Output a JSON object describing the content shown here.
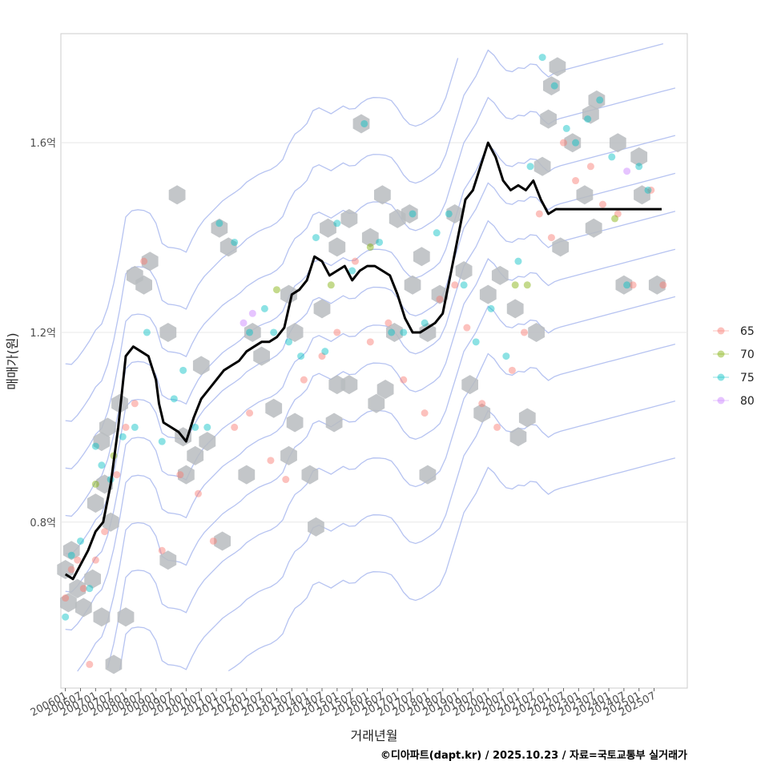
{
  "chart_data": {
    "type": "scatter",
    "xlabel": "거래년월",
    "ylabel": "매매가(원)",
    "caption": "©디아파트(dapt.kr) / 2025.10.23 / 자료=국토교통부 실거래가",
    "xlim": [
      2005.85,
      2026.6
    ],
    "ylim": [
      0.45,
      1.83
    ],
    "y_ticks": [
      {
        "value": 0.8,
        "label": "0.8억"
      },
      {
        "value": 1.2,
        "label": "1.2억"
      },
      {
        "value": 1.6,
        "label": "1.6억"
      }
    ],
    "x_ticks": [
      "200601",
      "200607",
      "200701",
      "200707",
      "200801",
      "200807",
      "200901",
      "200907",
      "201001",
      "201007",
      "201101",
      "201107",
      "201201",
      "201207",
      "201301",
      "201307",
      "201401",
      "201407",
      "201501",
      "201507",
      "201601",
      "201607",
      "201701",
      "201707",
      "201801",
      "201807",
      "201901",
      "201907",
      "202001",
      "202007",
      "202101",
      "202107",
      "202201",
      "202207",
      "202301",
      "202307",
      "202401",
      "202407",
      "202501",
      "202507"
    ],
    "legend": {
      "placement": "right",
      "entries": [
        {
          "label": "65",
          "color": "#f8766d"
        },
        {
          "label": "70",
          "color": "#7cae00"
        },
        {
          "label": "75",
          "color": "#00bfc4"
        },
        {
          "label": "80",
          "color": "#c77cff"
        }
      ]
    },
    "colors": {
      "grid": "#e8e8e8",
      "panel_border": "#cccccc",
      "hex": "#b8bcbf",
      "contour": "#a9b8ee",
      "trend": "#000000"
    },
    "trend_line": {
      "name": "moving average",
      "x": [
        2006.0,
        2006.25,
        2006.5,
        2006.75,
        2007.0,
        2007.25,
        2007.5,
        2007.75,
        2008.0,
        2008.25,
        2008.5,
        2008.75,
        2009.0,
        2009.1,
        2009.25,
        2009.5,
        2009.75,
        2010.0,
        2010.25,
        2010.5,
        2010.75,
        2011.0,
        2011.25,
        2011.5,
        2011.75,
        2012.0,
        2012.25,
        2012.5,
        2012.75,
        2013.0,
        2013.25,
        2013.5,
        2013.75,
        2014.0,
        2014.25,
        2014.5,
        2014.75,
        2015.0,
        2015.25,
        2015.5,
        2015.75,
        2016.0,
        2016.25,
        2016.5,
        2016.75,
        2017.0,
        2017.25,
        2017.5,
        2017.75,
        2018.0,
        2018.25,
        2018.5,
        2018.75,
        2019.0,
        2019.25,
        2019.5,
        2019.75,
        2020.0,
        2020.25,
        2020.5,
        2020.75,
        2021.0,
        2021.25,
        2021.5,
        2021.75,
        2022.0,
        2022.25,
        2022.5,
        2022.75,
        2023.0,
        2023.25,
        2023.5,
        2023.75,
        2024.0,
        2024.25,
        2024.5,
        2024.75,
        2025.0,
        2025.25,
        2025.5,
        2025.75
      ],
      "y": [
        0.69,
        0.68,
        0.71,
        0.74,
        0.78,
        0.8,
        0.88,
        1.0,
        1.15,
        1.17,
        1.16,
        1.15,
        1.1,
        1.05,
        1.01,
        1.0,
        0.99,
        0.97,
        1.02,
        1.06,
        1.08,
        1.1,
        1.12,
        1.13,
        1.14,
        1.16,
        1.17,
        1.18,
        1.18,
        1.19,
        1.21,
        1.28,
        1.29,
        1.31,
        1.36,
        1.35,
        1.32,
        1.33,
        1.34,
        1.31,
        1.33,
        1.34,
        1.34,
        1.33,
        1.32,
        1.28,
        1.23,
        1.2,
        1.2,
        1.21,
        1.22,
        1.24,
        1.32,
        1.4,
        1.48,
        1.5,
        1.55,
        1.6,
        1.57,
        1.52,
        1.5,
        1.51,
        1.5,
        1.52,
        1.48,
        1.45,
        1.46,
        1.46,
        1.46,
        1.46,
        1.46,
        1.46,
        1.46,
        1.46,
        1.46,
        1.46,
        1.46,
        1.46,
        1.46,
        1.46,
        1.46
      ]
    },
    "trend_line_note": "",
    "series": [
      {
        "name": "65",
        "x": [
          2006.0,
          2006.2,
          2006.4,
          2006.6,
          2006.8,
          2007.0,
          2007.3,
          2007.7,
          2008.0,
          2008.3,
          2008.6,
          2009.2,
          2009.8,
          2010.4,
          2010.9,
          2011.6,
          2012.1,
          2012.8,
          2013.3,
          2013.9,
          2014.5,
          2015.0,
          2015.6,
          2016.1,
          2016.7,
          2017.2,
          2017.9,
          2018.4,
          2018.9,
          2019.3,
          2019.8,
          2020.3,
          2020.8,
          2021.2,
          2021.7,
          2022.1,
          2022.5,
          2022.9,
          2023.4,
          2023.8,
          2024.3,
          2024.8,
          2025.4,
          2025.8
        ],
        "y": [
          0.64,
          0.7,
          0.72,
          0.66,
          0.5,
          0.72,
          0.78,
          0.9,
          1.0,
          1.05,
          1.35,
          0.74,
          0.9,
          0.86,
          0.76,
          1.0,
          1.03,
          0.93,
          0.89,
          1.1,
          1.15,
          1.2,
          1.35,
          1.18,
          1.22,
          1.1,
          1.03,
          1.27,
          1.3,
          1.21,
          1.05,
          1.0,
          1.12,
          1.2,
          1.45,
          1.4,
          1.6,
          1.52,
          1.55,
          1.47,
          1.45,
          1.3,
          1.5,
          1.3
        ]
      },
      {
        "name": "70",
        "x": [
          2007.0,
          2007.6,
          2013.0,
          2014.8,
          2016.1,
          2020.9,
          2021.3,
          2024.2
        ],
        "y": [
          0.88,
          0.94,
          1.29,
          1.3,
          1.38,
          1.3,
          1.3,
          1.44
        ]
      },
      {
        "name": "75",
        "x": [
          2006.0,
          2006.2,
          2006.5,
          2006.8,
          2007.0,
          2007.2,
          2007.5,
          2007.9,
          2008.3,
          2008.7,
          2009.2,
          2009.6,
          2009.9,
          2010.3,
          2010.7,
          2011.1,
          2011.6,
          2012.1,
          2012.6,
          2012.9,
          2013.4,
          2013.8,
          2014.3,
          2014.6,
          2015.0,
          2015.5,
          2015.9,
          2016.4,
          2016.8,
          2017.2,
          2017.5,
          2017.9,
          2018.3,
          2018.7,
          2019.2,
          2019.6,
          2020.1,
          2020.6,
          2021.0,
          2021.4,
          2021.8,
          2022.2,
          2022.6,
          2022.9,
          2023.3,
          2023.7,
          2024.1,
          2024.6,
          2025.0,
          2025.3
        ],
        "y": [
          0.6,
          0.73,
          0.76,
          0.66,
          0.96,
          0.92,
          0.89,
          0.98,
          1.0,
          1.2,
          0.97,
          1.06,
          1.12,
          1.0,
          1.0,
          1.43,
          1.39,
          1.2,
          1.25,
          1.2,
          1.18,
          1.15,
          1.4,
          1.16,
          1.43,
          1.33,
          1.64,
          1.39,
          1.2,
          1.2,
          1.45,
          1.22,
          1.41,
          1.45,
          1.3,
          1.18,
          1.25,
          1.15,
          1.35,
          1.55,
          1.78,
          1.72,
          1.63,
          1.6,
          1.65,
          1.69,
          1.57,
          1.3,
          1.55,
          1.5
        ]
      },
      {
        "name": "80",
        "x": [
          2011.9,
          2012.2,
          2024.6
        ],
        "y": [
          1.22,
          1.24,
          1.54
        ]
      }
    ],
    "density_bins": [
      {
        "x": 2006.0,
        "y": 0.7
      },
      {
        "x": 2006.2,
        "y": 0.74
      },
      {
        "x": 2006.4,
        "y": 0.66
      },
      {
        "x": 2006.1,
        "y": 0.63
      },
      {
        "x": 2006.6,
        "y": 0.62
      },
      {
        "x": 2006.9,
        "y": 0.68
      },
      {
        "x": 2007.2,
        "y": 0.6
      },
      {
        "x": 2007.0,
        "y": 0.84
      },
      {
        "x": 2007.3,
        "y": 0.88
      },
      {
        "x": 2007.5,
        "y": 0.8
      },
      {
        "x": 2007.6,
        "y": 0.5
      },
      {
        "x": 2007.2,
        "y": 0.97
      },
      {
        "x": 2007.4,
        "y": 1.0
      },
      {
        "x": 2007.8,
        "y": 1.05
      },
      {
        "x": 2008.0,
        "y": 0.6
      },
      {
        "x": 2008.6,
        "y": 1.3
      },
      {
        "x": 2008.8,
        "y": 1.35
      },
      {
        "x": 2008.3,
        "y": 1.32
      },
      {
        "x": 2009.4,
        "y": 1.2
      },
      {
        "x": 2009.7,
        "y": 1.49
      },
      {
        "x": 2009.4,
        "y": 0.72
      },
      {
        "x": 2009.9,
        "y": 0.98
      },
      {
        "x": 2010.3,
        "y": 0.94
      },
      {
        "x": 2010.5,
        "y": 1.13
      },
      {
        "x": 2010.0,
        "y": 0.9
      },
      {
        "x": 2011.1,
        "y": 1.42
      },
      {
        "x": 2011.4,
        "y": 1.38
      },
      {
        "x": 2010.7,
        "y": 0.97
      },
      {
        "x": 2011.2,
        "y": 0.76
      },
      {
        "x": 2012.0,
        "y": 0.9
      },
      {
        "x": 2012.2,
        "y": 1.2
      },
      {
        "x": 2012.5,
        "y": 1.15
      },
      {
        "x": 2012.9,
        "y": 1.04
      },
      {
        "x": 2013.4,
        "y": 1.28
      },
      {
        "x": 2013.6,
        "y": 1.2
      },
      {
        "x": 2013.4,
        "y": 0.94
      },
      {
        "x": 2013.6,
        "y": 1.01
      },
      {
        "x": 2014.1,
        "y": 0.9
      },
      {
        "x": 2014.3,
        "y": 0.79
      },
      {
        "x": 2014.5,
        "y": 1.25
      },
      {
        "x": 2014.7,
        "y": 1.42
      },
      {
        "x": 2015.0,
        "y": 1.38
      },
      {
        "x": 2014.9,
        "y": 1.01
      },
      {
        "x": 2015.0,
        "y": 1.09
      },
      {
        "x": 2015.4,
        "y": 1.44
      },
      {
        "x": 2015.8,
        "y": 1.64
      },
      {
        "x": 2015.4,
        "y": 1.09
      },
      {
        "x": 2016.1,
        "y": 1.4
      },
      {
        "x": 2016.5,
        "y": 1.49
      },
      {
        "x": 2016.3,
        "y": 1.05
      },
      {
        "x": 2016.6,
        "y": 1.08
      },
      {
        "x": 2017.0,
        "y": 1.44
      },
      {
        "x": 2016.9,
        "y": 1.2
      },
      {
        "x": 2017.4,
        "y": 1.45
      },
      {
        "x": 2017.5,
        "y": 1.3
      },
      {
        "x": 2017.8,
        "y": 1.36
      },
      {
        "x": 2018.0,
        "y": 1.2
      },
      {
        "x": 2018.4,
        "y": 1.28
      },
      {
        "x": 2018.0,
        "y": 0.9
      },
      {
        "x": 2018.9,
        "y": 1.45
      },
      {
        "x": 2019.2,
        "y": 1.33
      },
      {
        "x": 2019.4,
        "y": 1.09
      },
      {
        "x": 2019.8,
        "y": 1.03
      },
      {
        "x": 2020.0,
        "y": 1.28
      },
      {
        "x": 2020.4,
        "y": 1.32
      },
      {
        "x": 2020.9,
        "y": 1.25
      },
      {
        "x": 2021.0,
        "y": 0.98
      },
      {
        "x": 2021.3,
        "y": 1.02
      },
      {
        "x": 2021.6,
        "y": 1.2
      },
      {
        "x": 2021.8,
        "y": 1.55
      },
      {
        "x": 2022.0,
        "y": 1.65
      },
      {
        "x": 2022.1,
        "y": 1.72
      },
      {
        "x": 2022.3,
        "y": 1.76
      },
      {
        "x": 2022.4,
        "y": 1.38
      },
      {
        "x": 2022.8,
        "y": 1.6
      },
      {
        "x": 2023.2,
        "y": 1.49
      },
      {
        "x": 2023.4,
        "y": 1.66
      },
      {
        "x": 2023.6,
        "y": 1.69
      },
      {
        "x": 2023.5,
        "y": 1.42
      },
      {
        "x": 2024.3,
        "y": 1.6
      },
      {
        "x": 2024.5,
        "y": 1.3
      },
      {
        "x": 2025.0,
        "y": 1.57
      },
      {
        "x": 2025.1,
        "y": 1.49
      },
      {
        "x": 2025.6,
        "y": 1.3
      }
    ],
    "density_contours_note": ""
  }
}
